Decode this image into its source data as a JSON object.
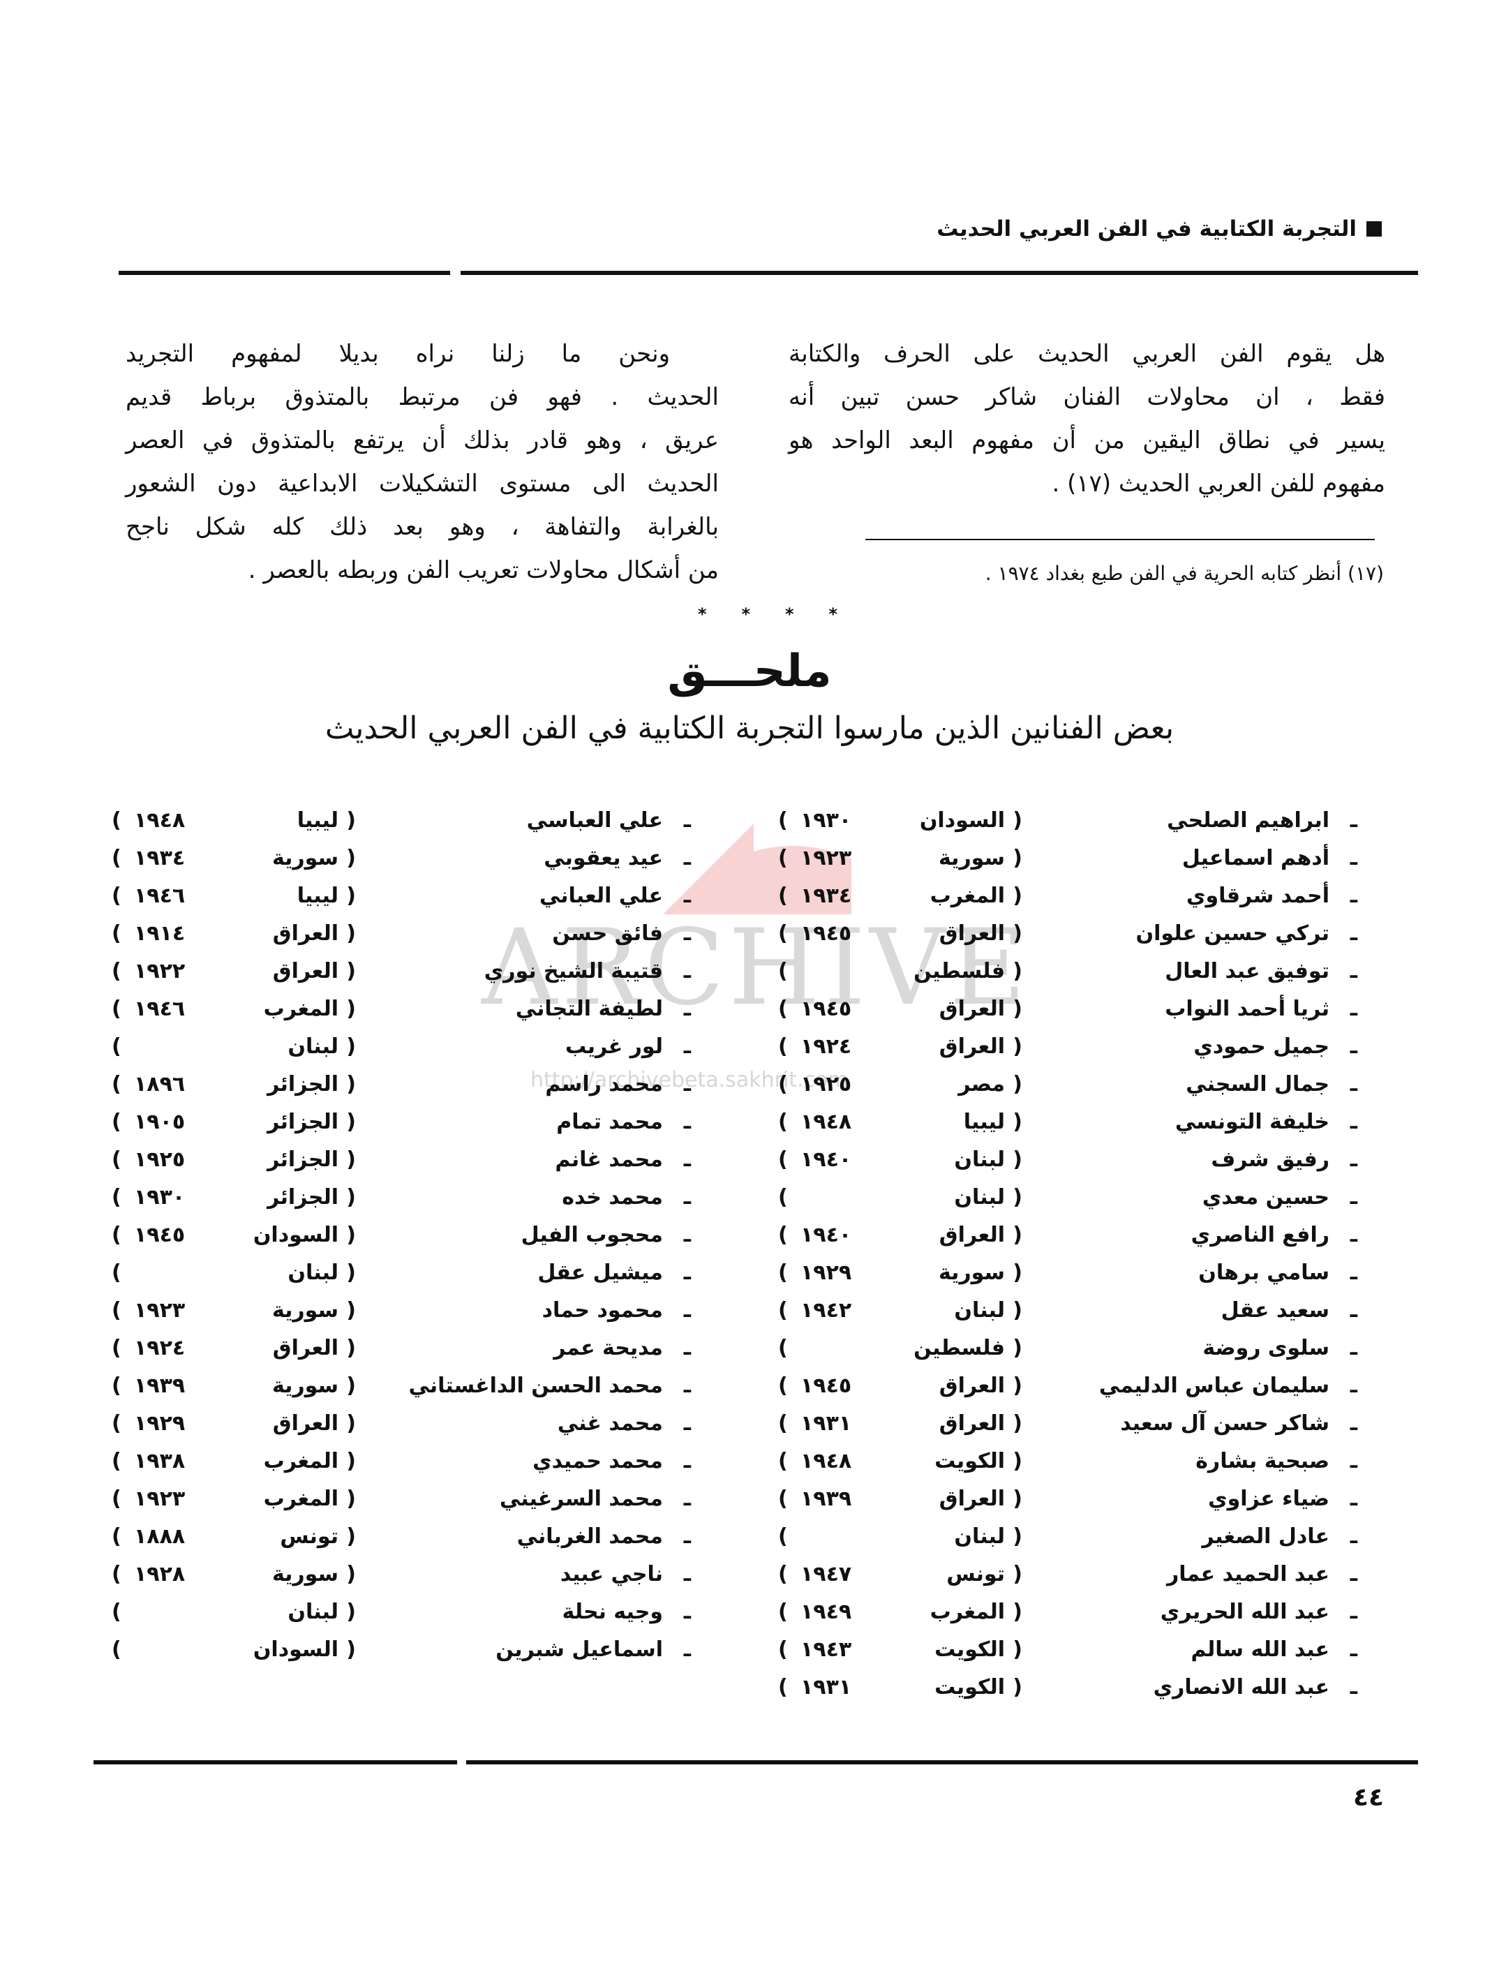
{
  "header": {
    "title": "التجربة الكتابية في الفن العربي الحديث"
  },
  "right_paragraph": {
    "lines": [
      "هل يقوم الفن العربي الحديث على الحرف والكتابة",
      "فقط ، ان محاولات الفنان شاكر حسن تبين أنه",
      "يسير في نطاق اليقين من أن مفهوم البعد الواحد هو",
      "مفهوم للفن العربي الحديث (١٧) ."
    ]
  },
  "footnote": "(١٧) أنظر كتابه الحرية في الفن طبع بغداد ١٩٧٤ .",
  "left_paragraph": {
    "lines": [
      "ونحن ما زلنا نراه بديلا لمفهوم التجريد",
      "الحديث . فهو فن مرتبط بالمتذوق برباط قديم",
      "عريق ، وهو قادر بذلك أن يرتفع بالمتذوق في العصر",
      "الحديث الى مستوى التشكيلات الابداعية دون الشعور",
      "بالغرابة والتفاهة ، وهو بعد ذلك كله شكل ناجح",
      "من أشكال محاولات تعريب الفن وربطه بالعصر ."
    ]
  },
  "separator": [
    "*",
    "*",
    "*",
    "*"
  ],
  "appendix": {
    "title": "ملحـــق",
    "subtitle": "بعض الفنانين الذين مارسوا التجربة الكتابية في الفن العربي الحديث",
    "marker": "ـ",
    "right_column": [
      {
        "name": "ابراهيم الصلحي",
        "country": "السودان",
        "year": "١٩٣٠"
      },
      {
        "name": "أدهم اسماعيل",
        "country": "سورية",
        "year": "١٩٢٣"
      },
      {
        "name": "أحمد شرقاوي",
        "country": "المغرب",
        "year": "١٩٣٤"
      },
      {
        "name": "تركي حسين علوان",
        "country": "العراق",
        "year": "١٩٤٥"
      },
      {
        "name": "توفيق عبد العال",
        "country": "فلسطين",
        "year": ""
      },
      {
        "name": "ثريا أحمد النواب",
        "country": "العراق",
        "year": "١٩٤٥"
      },
      {
        "name": "جميل حمودي",
        "country": "العراق",
        "year": "١٩٢٤"
      },
      {
        "name": "جمال السجني",
        "country": "مصر",
        "year": "١٩٢٥"
      },
      {
        "name": "خليفة التونسي",
        "country": "ليبيا",
        "year": "١٩٤٨"
      },
      {
        "name": "رفيق شرف",
        "country": "لبنان",
        "year": "١٩٤٠"
      },
      {
        "name": "حسين معدي",
        "country": "لبنان",
        "year": ""
      },
      {
        "name": "رافع الناصري",
        "country": "العراق",
        "year": "١٩٤٠"
      },
      {
        "name": "سامي برهان",
        "country": "سورية",
        "year": "١٩٢٩"
      },
      {
        "name": "سعيد عقل",
        "country": "لبنان",
        "year": "١٩٤٢"
      },
      {
        "name": "سلوى روضة",
        "country": "فلسطين",
        "year": ""
      },
      {
        "name": "سليمان عباس الدليمي",
        "country": "العراق",
        "year": "١٩٤٥"
      },
      {
        "name": "شاكر حسن آل سعيد",
        "country": "العراق",
        "year": "١٩٣١"
      },
      {
        "name": "صبحية بشارة",
        "country": "الكويت",
        "year": "١٩٤٨"
      },
      {
        "name": "ضياء عزاوي",
        "country": "العراق",
        "year": "١٩٣٩"
      },
      {
        "name": "عادل الصغير",
        "country": "لبنان",
        "year": ""
      },
      {
        "name": "عبد الحميد عمار",
        "country": "تونس",
        "year": "١٩٤٧"
      },
      {
        "name": "عبد الله الحريري",
        "country": "المغرب",
        "year": "١٩٤٩"
      },
      {
        "name": "عبد الله سالم",
        "country": "الكويت",
        "year": "١٩٤٣"
      },
      {
        "name": "عبد الله الانصاري",
        "country": "الكويت",
        "year": "١٩٣١"
      }
    ],
    "left_column": [
      {
        "name": "علي العباسي",
        "country": "ليبيا",
        "year": "١٩٤٨"
      },
      {
        "name": "عيد يعقوبي",
        "country": "سورية",
        "year": "١٩٣٤"
      },
      {
        "name": "علي العباني",
        "country": "ليبيا",
        "year": "١٩٤٦"
      },
      {
        "name": "فائق حسن",
        "country": "العراق",
        "year": "١٩١٤"
      },
      {
        "name": "قتيبة الشيخ نوري",
        "country": "العراق",
        "year": "١٩٢٢"
      },
      {
        "name": "لطيفة التجاني",
        "country": "المغرب",
        "year": "١٩٤٦"
      },
      {
        "name": "لور غريب",
        "country": "لبنان",
        "year": ""
      },
      {
        "name": "محمد راسم",
        "country": "الجزائر",
        "year": "١٨٩٦"
      },
      {
        "name": "محمد تمام",
        "country": "الجزائر",
        "year": "١٩٠٥"
      },
      {
        "name": "محمد غانم",
        "country": "الجزائر",
        "year": "١٩٢٥"
      },
      {
        "name": "محمد خده",
        "country": "الجزائر",
        "year": "١٩٣٠"
      },
      {
        "name": "محجوب الفيل",
        "country": "السودان",
        "year": "١٩٤٥"
      },
      {
        "name": "ميشيل عقل",
        "country": "لبنان",
        "year": ""
      },
      {
        "name": "محمود حماد",
        "country": "سورية",
        "year": "١٩٢٣"
      },
      {
        "name": "مديحة عمر",
        "country": "العراق",
        "year": "١٩٢٤"
      },
      {
        "name": "محمد الحسن الداغستاني",
        "country": "سورية",
        "year": "١٩٣٩"
      },
      {
        "name": "محمد غني",
        "country": "العراق",
        "year": "١٩٢٩"
      },
      {
        "name": "محمد حميدي",
        "country": "المغرب",
        "year": "١٩٣٨"
      },
      {
        "name": "محمد السرغيني",
        "country": "المغرب",
        "year": "١٩٢٣"
      },
      {
        "name": "محمد الغرباني",
        "country": "تونس",
        "year": "١٨٨٨"
      },
      {
        "name": "ناجي عبيد",
        "country": "سورية",
        "year": "١٩٢٨"
      },
      {
        "name": "وجيه نحلة",
        "country": "لبنان",
        "year": ""
      },
      {
        "name": "اسماعيل شبرين",
        "country": "السودان",
        "year": ""
      }
    ]
  },
  "watermark": {
    "text": "ARCHIVE",
    "url": "http://archivebeta.sakhrit.com",
    "color": "#e05050"
  },
  "page_number": "٤٤"
}
